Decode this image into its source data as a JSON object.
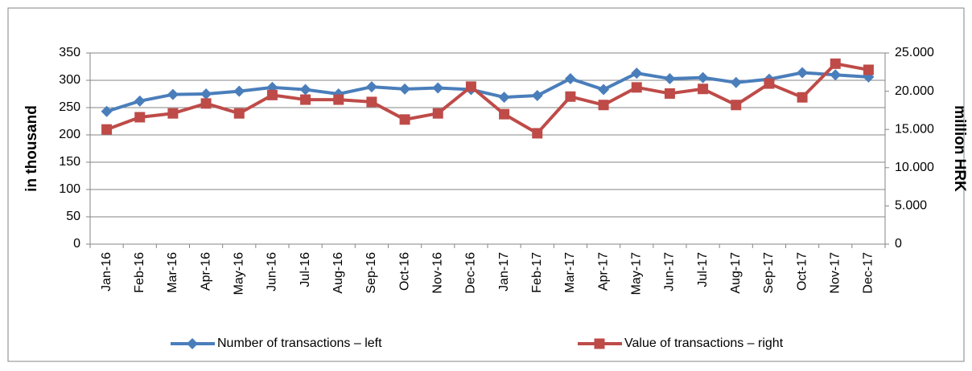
{
  "chart_data": {
    "type": "line",
    "y_label": "in thousand",
    "y2_label": "million  HRK",
    "categories": [
      "Jan-16",
      "Feb-16",
      "Mar-16",
      "Apr-16",
      "May-16",
      "Jun-16",
      "Jul-16",
      "Aug-16",
      "Sep-16",
      "Oct-16",
      "Nov-16",
      "Dec-16",
      "Jan-17",
      "Feb-17",
      "Mar-17",
      "Apr-17",
      "May-17",
      "Jun-17",
      "Jul-17",
      "Aug-17",
      "Sep-17",
      "Oct-17",
      "Nov-17",
      "Dec-17"
    ],
    "series": [
      {
        "name": "Number of transactions – left",
        "color": "#4a7ebb",
        "marker": "diamond",
        "axis": "y",
        "values": [
          243,
          262,
          274,
          275,
          280,
          287,
          283,
          275,
          288,
          284,
          286,
          283,
          269,
          272,
          303,
          283,
          313,
          303,
          305,
          296,
          302,
          314,
          310,
          306
        ]
      },
      {
        "name": "Value of transactions – right",
        "color": "#be4b48",
        "marker": "square",
        "axis": "y2",
        "values": [
          15000,
          16600,
          17100,
          18400,
          17100,
          19500,
          18900,
          18900,
          18600,
          16300,
          17100,
          20600,
          17000,
          14500,
          19300,
          18200,
          20500,
          19700,
          20300,
          18200,
          21000,
          19200,
          23600,
          22800
        ]
      }
    ],
    "ylim": [
      0,
      350
    ],
    "yticks": [
      0,
      50,
      100,
      150,
      200,
      250,
      300,
      350
    ],
    "y2lim": [
      0,
      25000
    ],
    "y2ticks": [
      0,
      {
        "value": 5000,
        "label": "5.000"
      },
      {
        "value": 10000,
        "label": "10.000"
      },
      {
        "value": 15000,
        "label": "15.000"
      },
      {
        "value": 20000,
        "label": "20.000"
      },
      {
        "value": 25000,
        "label": "25.000"
      }
    ],
    "grid": true,
    "legend": "bottom"
  }
}
